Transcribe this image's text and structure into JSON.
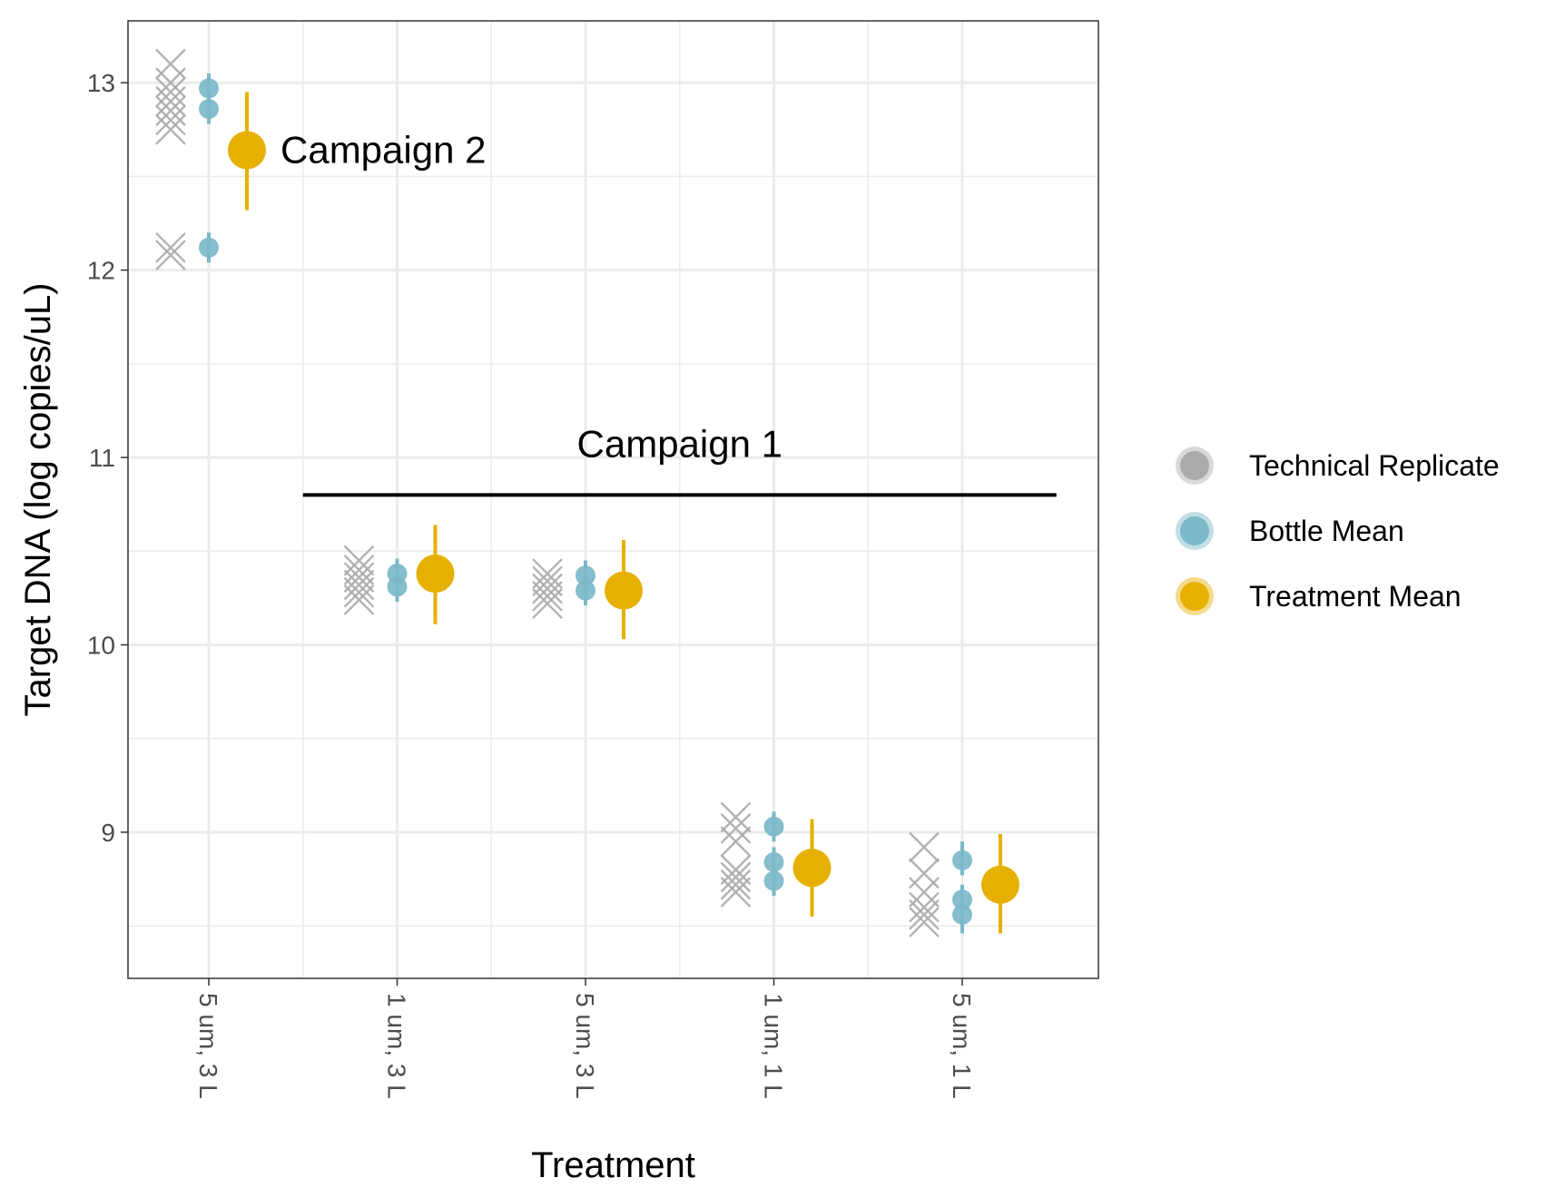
{
  "chart_data": {
    "type": "scatter",
    "xlabel": "Treatment",
    "ylabel": "Target DNA (log copies/uL)",
    "categories": [
      "5 um, 3 L",
      "1 um, 3 L",
      "5 um, 3 L",
      "1 um, 1 L",
      "5 um, 1 L"
    ],
    "y_ticks": [
      9,
      10,
      11,
      12,
      13
    ],
    "ylim": [
      8.22,
      13.33
    ],
    "grid": true,
    "legend_position": "right",
    "legend": [
      {
        "key": "technical",
        "label": "Technical Replicate",
        "color": "#aaaaaa"
      },
      {
        "key": "bottle",
        "label": "Bottle Mean",
        "color": "#7bb8c8"
      },
      {
        "key": "treatment",
        "label": "Treatment Mean",
        "color": "#e6b000"
      }
    ],
    "annotations": [
      {
        "label": "Campaign 2",
        "anchor_category": 0,
        "y": 12.64
      },
      {
        "label": "Campaign 1",
        "span_categories": [
          0.5,
          4.5
        ],
        "y": 10.8
      }
    ],
    "series": [
      {
        "category": 0,
        "technical": [
          13.1,
          13.0,
          12.95,
          12.9,
          12.85,
          12.8,
          12.75,
          12.12,
          12.08
        ],
        "bottle": [
          {
            "y": 12.97,
            "low": 12.89,
            "high": 13.05
          },
          {
            "y": 12.86,
            "low": 12.78,
            "high": 12.94
          },
          {
            "y": 12.12,
            "low": 12.04,
            "high": 12.2
          }
        ],
        "treatment": {
          "y": 12.64,
          "low": 12.32,
          "high": 12.95
        }
      },
      {
        "category": 1,
        "technical": [
          10.45,
          10.4,
          10.36,
          10.32,
          10.28,
          10.24
        ],
        "bottle": [
          {
            "y": 10.38,
            "low": 10.3,
            "high": 10.46
          },
          {
            "y": 10.31,
            "low": 10.23,
            "high": 10.39
          }
        ],
        "treatment": {
          "y": 10.38,
          "low": 10.11,
          "high": 10.64
        }
      },
      {
        "category": 2,
        "technical": [
          10.38,
          10.34,
          10.3,
          10.26,
          10.22
        ],
        "bottle": [
          {
            "y": 10.37,
            "low": 10.29,
            "high": 10.45
          },
          {
            "y": 10.29,
            "low": 10.21,
            "high": 10.37
          }
        ],
        "treatment": {
          "y": 10.29,
          "low": 10.03,
          "high": 10.56
        }
      },
      {
        "category": 3,
        "technical": [
          9.08,
          9.02,
          8.95,
          8.8,
          8.76,
          8.72,
          8.68
        ],
        "bottle": [
          {
            "y": 9.03,
            "low": 8.95,
            "high": 9.11
          },
          {
            "y": 8.84,
            "low": 8.76,
            "high": 8.92
          },
          {
            "y": 8.74,
            "low": 8.66,
            "high": 8.82
          }
        ],
        "treatment": {
          "y": 8.81,
          "low": 8.55,
          "high": 9.07
        }
      },
      {
        "category": 4,
        "technical": [
          8.92,
          8.78,
          8.68,
          8.6,
          8.56,
          8.52
        ],
        "bottle": [
          {
            "y": 8.85,
            "low": 8.77,
            "high": 8.95
          },
          {
            "y": 8.64,
            "low": 8.56,
            "high": 8.72
          },
          {
            "y": 8.56,
            "low": 8.46,
            "high": 8.64
          }
        ],
        "treatment": {
          "y": 8.72,
          "low": 8.46,
          "high": 8.99
        }
      }
    ]
  }
}
